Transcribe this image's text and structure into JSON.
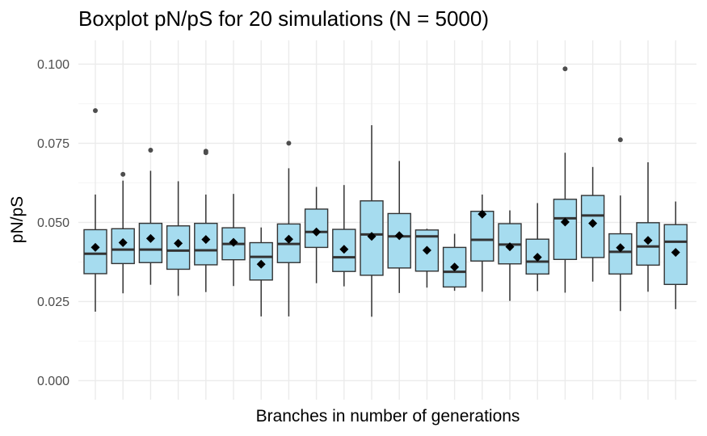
{
  "chart_data": {
    "type": "boxplot",
    "title": "Boxplot pN/pS for 20 simulations (N = 5000)",
    "xlabel": "Branches in number of generations",
    "ylabel": "pN/pS",
    "ylim": [
      -0.006,
      0.1075
    ],
    "yticks": [
      0.0,
      0.025,
      0.05,
      0.075,
      0.1
    ],
    "ytick_labels": [
      "0.000",
      "0.025",
      "0.050",
      "0.075",
      "0.100"
    ],
    "grid": true,
    "legend": "none",
    "colors": {
      "box_fill": "#a6dcef",
      "box_stroke": "#333333",
      "mean_marker": "#000000",
      "outlier": "#4d4d4d",
      "grid_major": "#ebebeb",
      "grid_minor": "#f5f5f5"
    },
    "boxes": [
      {
        "q1": 0.0338,
        "median": 0.0401,
        "q3": 0.0477,
        "whisker_low": 0.0218,
        "whisker_high": 0.0588,
        "mean": 0.0421,
        "outliers": [
          0.0853
        ]
      },
      {
        "q1": 0.037,
        "median": 0.0414,
        "q3": 0.048,
        "whisker_low": 0.0276,
        "whisker_high": 0.0632,
        "mean": 0.0436,
        "outliers": [
          0.0652
        ]
      },
      {
        "q1": 0.0373,
        "median": 0.0414,
        "q3": 0.0497,
        "whisker_low": 0.0303,
        "whisker_high": 0.0663,
        "mean": 0.0449,
        "outliers": [
          0.0728
        ]
      },
      {
        "q1": 0.0352,
        "median": 0.0411,
        "q3": 0.0489,
        "whisker_low": 0.0268,
        "whisker_high": 0.063,
        "mean": 0.0434,
        "outliers": []
      },
      {
        "q1": 0.0366,
        "median": 0.0412,
        "q3": 0.0497,
        "whisker_low": 0.028,
        "whisker_high": 0.0588,
        "mean": 0.0446,
        "outliers": [
          0.0725,
          0.072
        ]
      },
      {
        "q1": 0.0382,
        "median": 0.0432,
        "q3": 0.0483,
        "whisker_low": 0.0299,
        "whisker_high": 0.059,
        "mean": 0.0437,
        "outliers": []
      },
      {
        "q1": 0.0318,
        "median": 0.0391,
        "q3": 0.0436,
        "whisker_low": 0.0203,
        "whisker_high": 0.0484,
        "mean": 0.0368,
        "outliers": []
      },
      {
        "q1": 0.0373,
        "median": 0.0432,
        "q3": 0.0495,
        "whisker_low": 0.0203,
        "whisker_high": 0.0671,
        "mean": 0.0447,
        "outliers": [
          0.075
        ]
      },
      {
        "q1": 0.0421,
        "median": 0.047,
        "q3": 0.0542,
        "whisker_low": 0.0308,
        "whisker_high": 0.0612,
        "mean": 0.047,
        "outliers": []
      },
      {
        "q1": 0.0345,
        "median": 0.039,
        "q3": 0.0478,
        "whisker_low": 0.0298,
        "whisker_high": 0.0618,
        "mean": 0.0415,
        "outliers": []
      },
      {
        "q1": 0.0333,
        "median": 0.0462,
        "q3": 0.0568,
        "whisker_low": 0.0202,
        "whisker_high": 0.0807,
        "mean": 0.0456,
        "outliers": []
      },
      {
        "q1": 0.0356,
        "median": 0.0456,
        "q3": 0.0528,
        "whisker_low": 0.0277,
        "whisker_high": 0.0694,
        "mean": 0.0458,
        "outliers": []
      },
      {
        "q1": 0.0346,
        "median": 0.0456,
        "q3": 0.0476,
        "whisker_low": 0.0294,
        "whisker_high": 0.048,
        "mean": 0.0412,
        "outliers": []
      },
      {
        "q1": 0.0296,
        "median": 0.0344,
        "q3": 0.0421,
        "whisker_low": 0.0284,
        "whisker_high": 0.0464,
        "mean": 0.0359,
        "outliers": []
      },
      {
        "q1": 0.0378,
        "median": 0.0445,
        "q3": 0.0535,
        "whisker_low": 0.0281,
        "whisker_high": 0.0588,
        "mean": 0.0526,
        "outliers": []
      },
      {
        "q1": 0.0369,
        "median": 0.043,
        "q3": 0.0496,
        "whisker_low": 0.0252,
        "whisker_high": 0.0538,
        "mean": 0.0423,
        "outliers": []
      },
      {
        "q1": 0.0337,
        "median": 0.0376,
        "q3": 0.0447,
        "whisker_low": 0.0283,
        "whisker_high": 0.0561,
        "mean": 0.039,
        "outliers": []
      },
      {
        "q1": 0.0383,
        "median": 0.0513,
        "q3": 0.0573,
        "whisker_low": 0.0278,
        "whisker_high": 0.072,
        "mean": 0.0501,
        "outliers": [
          0.0985
        ]
      },
      {
        "q1": 0.0389,
        "median": 0.0522,
        "q3": 0.0585,
        "whisker_low": 0.0313,
        "whisker_high": 0.0675,
        "mean": 0.0497,
        "outliers": []
      },
      {
        "q1": 0.0337,
        "median": 0.0407,
        "q3": 0.0464,
        "whisker_low": 0.022,
        "whisker_high": 0.0585,
        "mean": 0.042,
        "outliers": [
          0.0761
        ]
      },
      {
        "q1": 0.0365,
        "median": 0.0424,
        "q3": 0.0499,
        "whisker_low": 0.0281,
        "whisker_high": 0.069,
        "mean": 0.0443,
        "outliers": []
      },
      {
        "q1": 0.0304,
        "median": 0.0439,
        "q3": 0.0493,
        "whisker_low": 0.0226,
        "whisker_high": 0.0566,
        "mean": 0.0405,
        "outliers": []
      }
    ]
  }
}
